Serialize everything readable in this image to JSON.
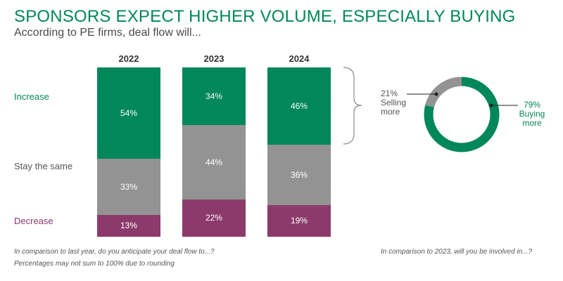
{
  "title": "SPONSORS EXPECT HIGHER VOLUME, ESPECIALLY BUYING",
  "subtitle": "According to PE firms, deal flow will...",
  "colors": {
    "increase": "#00875a",
    "same": "#939393",
    "decrease": "#8b3a6b",
    "title": "#00875a"
  },
  "chart_data": [
    {
      "type": "bar",
      "stacked": true,
      "categories": [
        "2022",
        "2023",
        "2024"
      ],
      "series": [
        {
          "name": "Increase",
          "values": [
            54,
            34,
            46
          ],
          "labels": [
            "54%",
            "34%",
            "46%"
          ]
        },
        {
          "name": "Stay the same",
          "values": [
            33,
            44,
            36
          ],
          "labels": [
            "33%",
            "44%",
            "36%"
          ]
        },
        {
          "name": "Decrease",
          "values": [
            13,
            22,
            19
          ],
          "labels": [
            "13%",
            "22%",
            "19%"
          ]
        }
      ],
      "ylim": [
        0,
        100
      ],
      "grid": false
    },
    {
      "type": "pie",
      "donut": true,
      "slices": [
        {
          "pct": "21%",
          "line1": "Selling",
          "line2": "more",
          "value": 21
        },
        {
          "pct": "79%",
          "line1": "Buying",
          "line2": "more",
          "value": 79
        }
      ]
    }
  ],
  "footnotes": {
    "left1": "In comparison to last year, do you anticipate your deal flow to...?",
    "left2": "Percentages may not sum to 100% due to rounding",
    "right": "In comparison to 2023, will you be involved in...?"
  }
}
